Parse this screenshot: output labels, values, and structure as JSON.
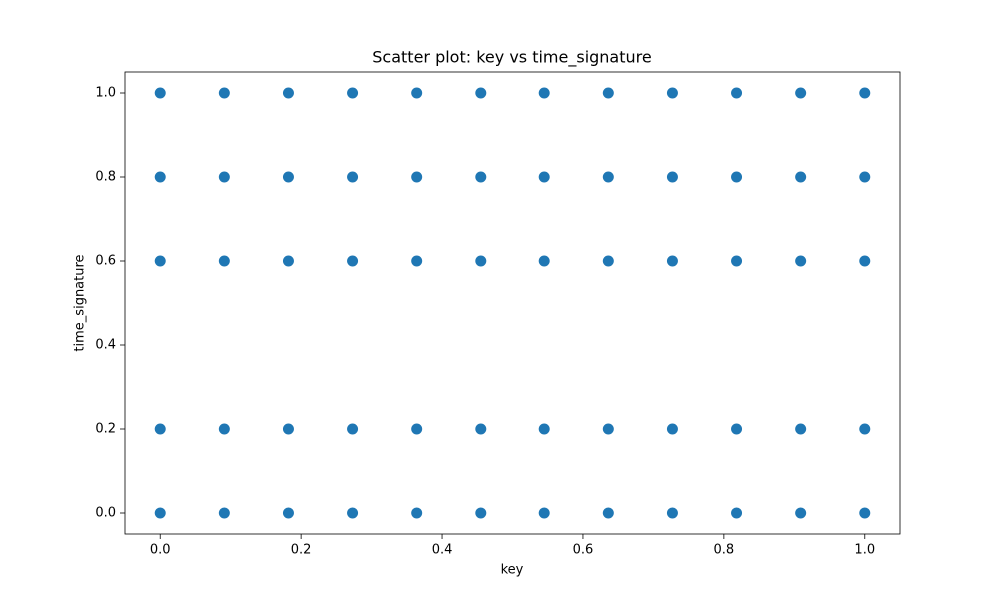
{
  "chart_data": {
    "type": "scatter",
    "title": "Scatter plot: key vs time_signature",
    "x_label": "key",
    "y_label": "time_signature",
    "color": "#1f77b4",
    "x": [
      0,
      0.091,
      0.182,
      0.273,
      0.364,
      0.455,
      0.545,
      0.636,
      0.727,
      0.818,
      0.909,
      1,
      0,
      0.091,
      0.182,
      0.273,
      0.364,
      0.455,
      0.545,
      0.636,
      0.727,
      0.818,
      0.909,
      1,
      0,
      0.091,
      0.182,
      0.273,
      0.364,
      0.455,
      0.545,
      0.636,
      0.727,
      0.818,
      0.909,
      1,
      0,
      0.091,
      0.182,
      0.273,
      0.364,
      0.455,
      0.545,
      0.636,
      0.727,
      0.818,
      0.909,
      1,
      0,
      0.091,
      0.182,
      0.273,
      0.364,
      0.455,
      0.545,
      0.636,
      0.727,
      0.818,
      0.909,
      1
    ],
    "values": [
      1,
      1,
      1,
      1,
      1,
      1,
      1,
      1,
      1,
      1,
      1,
      1,
      0.8,
      0.8,
      0.8,
      0.8,
      0.8,
      0.8,
      0.8,
      0.8,
      0.8,
      0.8,
      0.8,
      0.8,
      0.6,
      0.6,
      0.6,
      0.6,
      0.6,
      0.6,
      0.6,
      0.6,
      0.6,
      0.6,
      0.6,
      0.6,
      0.2,
      0.2,
      0.2,
      0.2,
      0.2,
      0.2,
      0.2,
      0.2,
      0.2,
      0.2,
      0.2,
      0.2,
      0,
      0,
      0,
      0,
      0,
      0,
      0,
      0,
      0,
      0,
      0,
      0
    ],
    "xlim": [
      -0.05,
      1.05
    ],
    "ylim": [
      -0.05,
      1.05
    ],
    "xticks": [
      {
        "value": 0,
        "label": "0.0"
      },
      {
        "value": 0.2,
        "label": "0.2"
      },
      {
        "value": 0.4,
        "label": "0.4"
      },
      {
        "value": 0.6,
        "label": "0.6"
      },
      {
        "value": 0.8,
        "label": "0.8"
      },
      {
        "value": 1,
        "label": "1.0"
      }
    ],
    "yticks": [
      {
        "value": 0,
        "label": "0.0"
      },
      {
        "value": 0.2,
        "label": "0.2"
      },
      {
        "value": 0.4,
        "label": "0.4"
      },
      {
        "value": 0.6,
        "label": "0.6"
      },
      {
        "value": 0.8,
        "label": "0.8"
      },
      {
        "value": 1,
        "label": "1.0"
      }
    ],
    "grid": false
  }
}
